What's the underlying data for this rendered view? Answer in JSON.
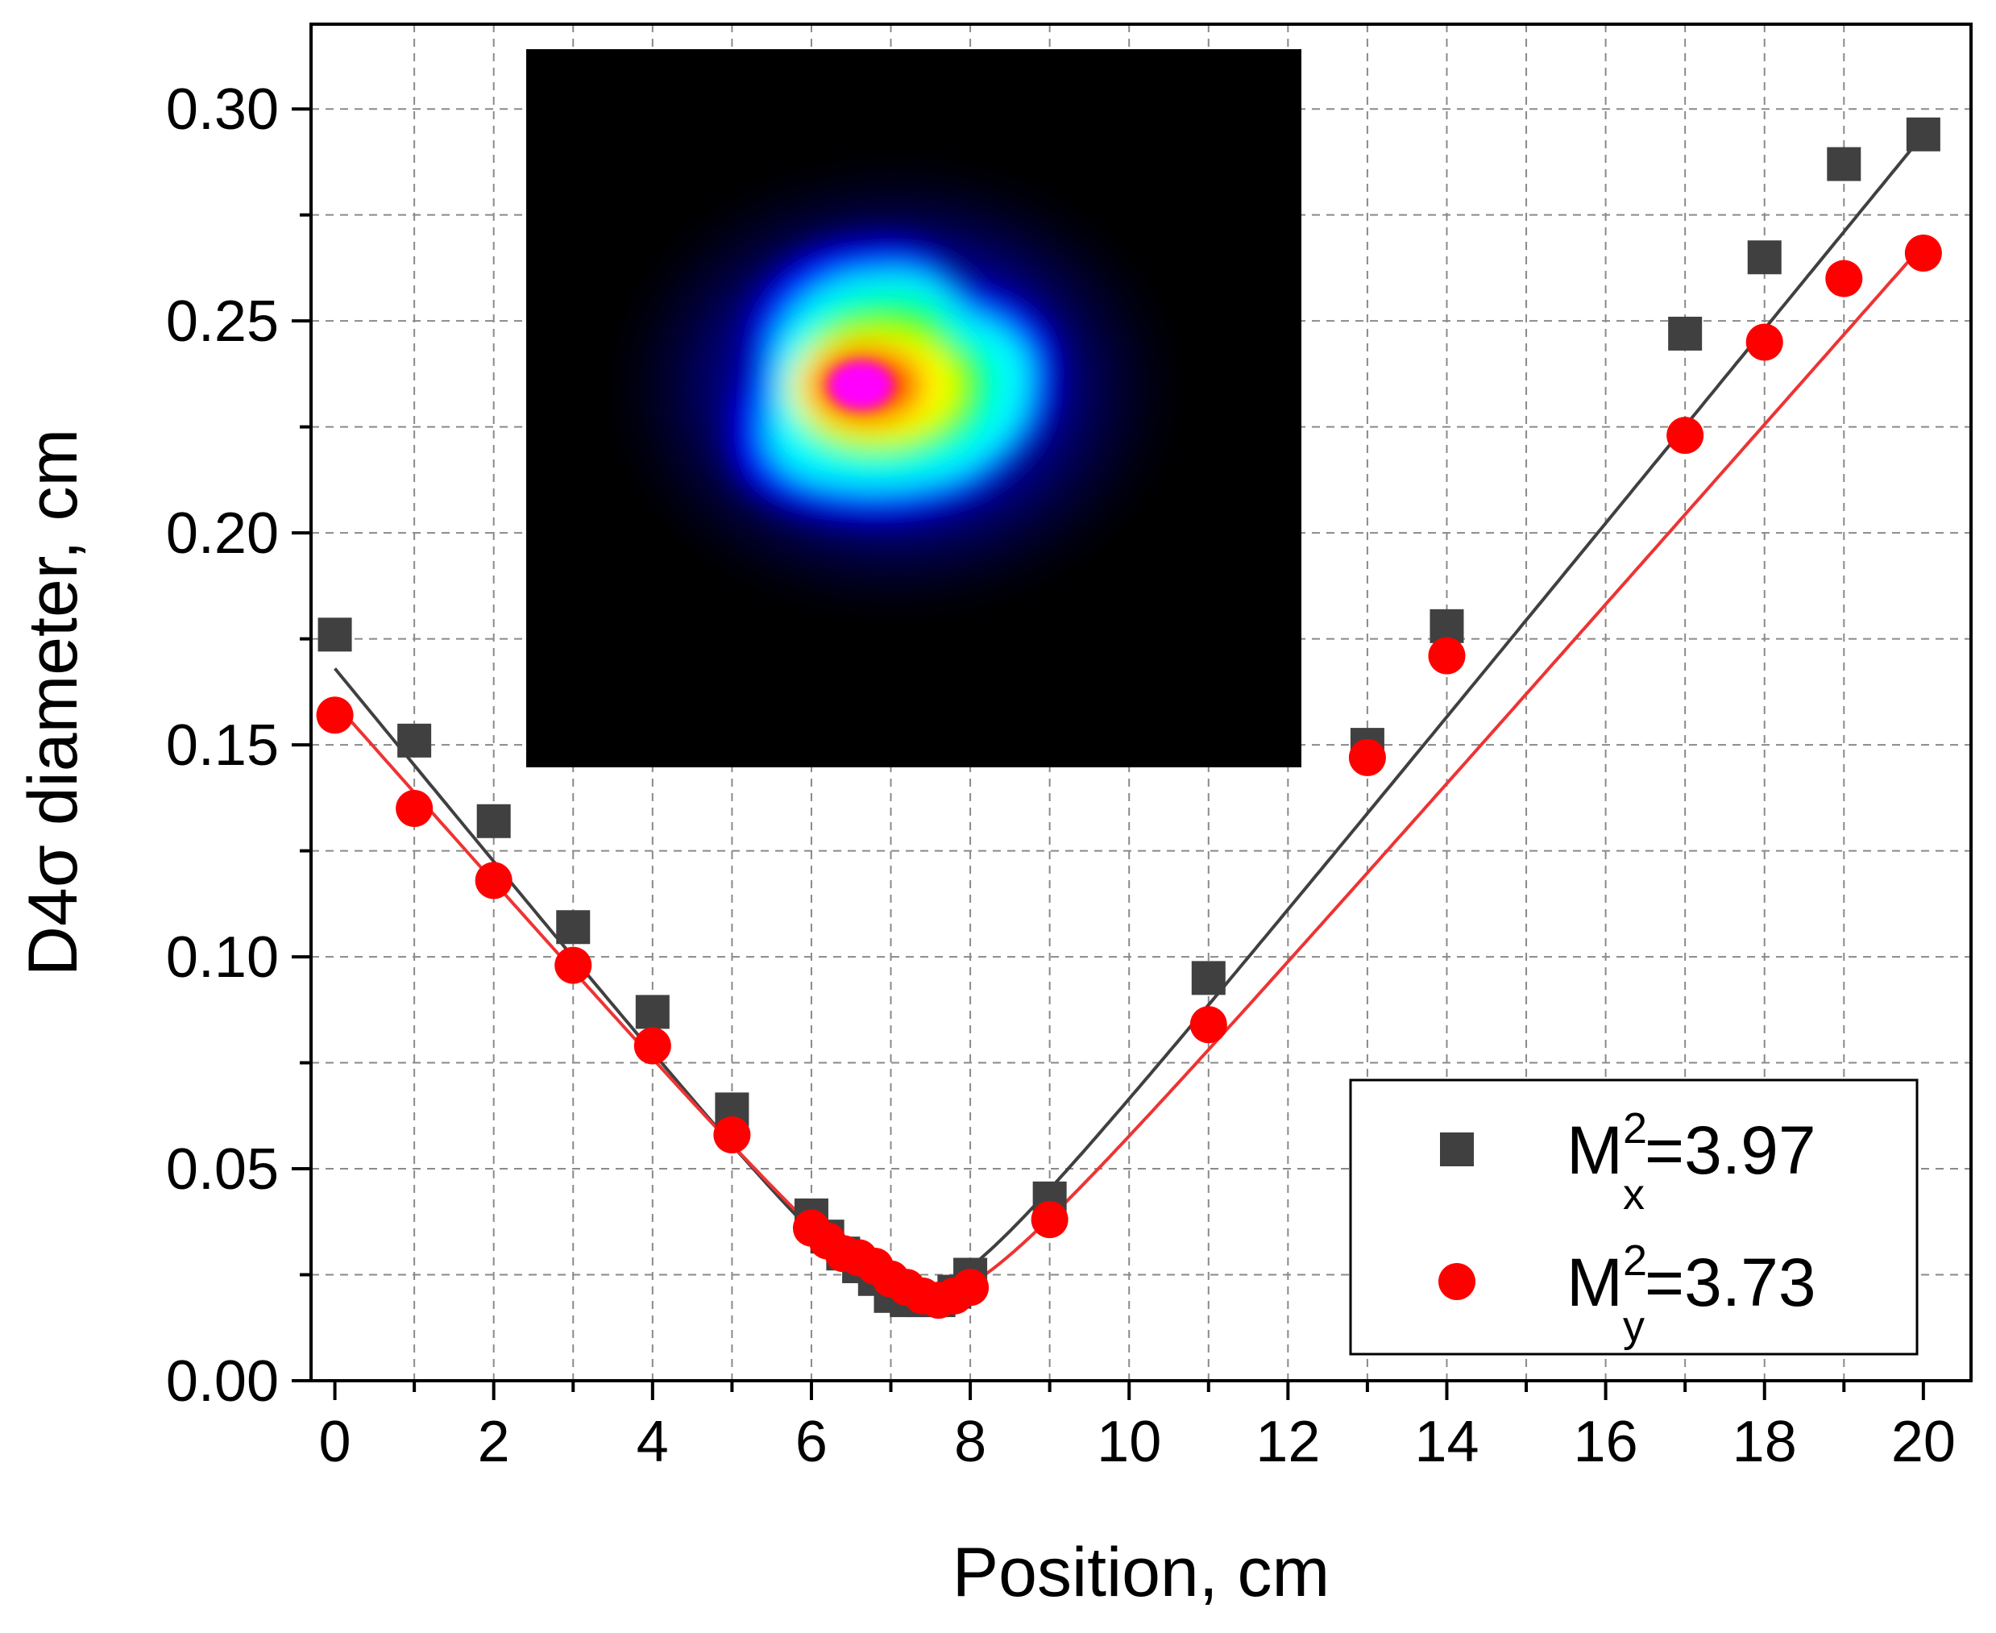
{
  "chart_data": {
    "type": "scatter",
    "title": "",
    "xlabel": "Position, cm",
    "ylabel_parts": {
      "pre": "D4",
      "sym": "σ",
      "post": " diameter, cm"
    },
    "xlim": [
      -0.3,
      20.6
    ],
    "ylim": [
      0.0,
      0.32
    ],
    "grid": true,
    "xticks": [
      0,
      2,
      4,
      6,
      8,
      10,
      12,
      14,
      16,
      18,
      20
    ],
    "xtick_labels": [
      "0",
      "2",
      "4",
      "6",
      "8",
      "10",
      "12",
      "14",
      "16",
      "18",
      "20"
    ],
    "yticks": [
      0.0,
      0.05,
      0.1,
      0.15,
      0.2,
      0.25,
      0.3
    ],
    "ytick_labels": [
      "0.00",
      "0.05",
      "0.10",
      "0.15",
      "0.20",
      "0.25",
      "0.30"
    ],
    "legend_position": "bottom-right",
    "series": [
      {
        "name": "Mx",
        "legend": {
          "base": "M",
          "sup": "2",
          "sub": "x",
          "value": "=3.97"
        },
        "marker": "square",
        "color": "#404040",
        "fit_color": "#404040",
        "fit": {
          "d0": 0.0205,
          "z0": 7.25,
          "theta": 0.023
        },
        "x": [
          0,
          1,
          2,
          3,
          4,
          5,
          6,
          6.2,
          6.4,
          6.6,
          6.8,
          7.0,
          7.2,
          7.4,
          7.6,
          7.8,
          8.0,
          9,
          11,
          13,
          14,
          17,
          18,
          19,
          20
        ],
        "y": [
          0.176,
          0.151,
          0.132,
          0.107,
          0.087,
          0.064,
          0.039,
          0.034,
          0.03,
          0.027,
          0.024,
          0.02,
          0.019,
          0.019,
          0.019,
          0.021,
          0.025,
          0.043,
          0.095,
          0.15,
          0.178,
          0.247,
          0.265,
          0.287,
          0.294
        ]
      },
      {
        "name": "My",
        "legend": {
          "base": "M",
          "sup": "2",
          "sub": "y",
          "value": "=3.73"
        },
        "marker": "circle",
        "color": "#ff0000",
        "fit_color": "#ee3333",
        "fit": {
          "d0": 0.0195,
          "z0": 7.45,
          "theta": 0.0213
        },
        "x": [
          0,
          1,
          2,
          3,
          4,
          5,
          6,
          6.2,
          6.4,
          6.6,
          6.8,
          7.0,
          7.2,
          7.4,
          7.6,
          7.8,
          8.0,
          9,
          11,
          13,
          14,
          17,
          18,
          19,
          20
        ],
        "y": [
          0.157,
          0.135,
          0.118,
          0.098,
          0.079,
          0.058,
          0.036,
          0.033,
          0.03,
          0.029,
          0.027,
          0.024,
          0.022,
          0.02,
          0.019,
          0.02,
          0.022,
          0.038,
          0.084,
          0.147,
          0.171,
          0.223,
          0.245,
          0.26,
          0.266
        ]
      }
    ],
    "inset": {
      "description_kind": "beam-profile-heatmap",
      "colormap": [
        "#000000",
        "#000a7a",
        "#0000ff",
        "#00ffff",
        "#00ff00",
        "#ffff00",
        "#ff7f00",
        "#ff0000",
        "#ff00ff"
      ]
    }
  }
}
